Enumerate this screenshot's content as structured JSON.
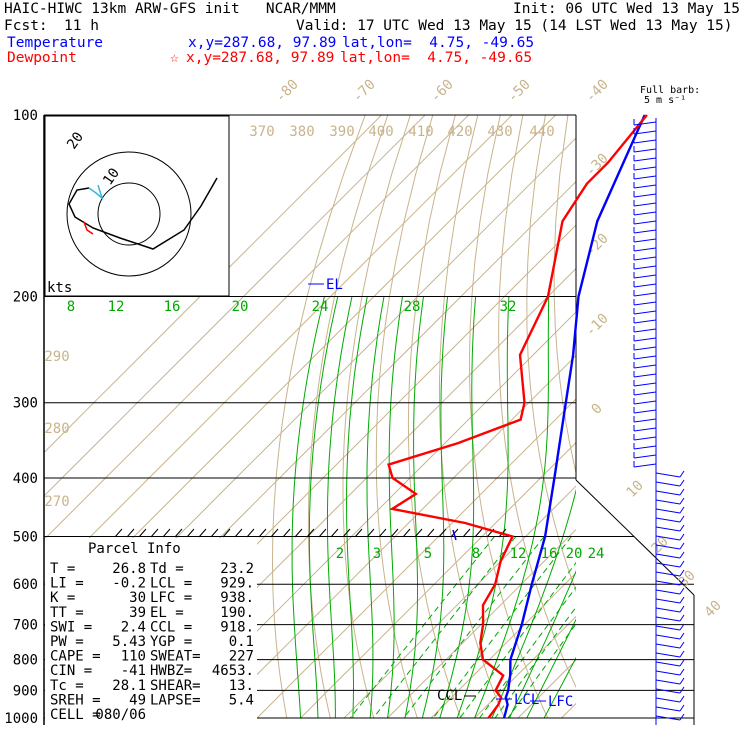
{
  "header": {
    "title": "HAIC-HIWC 13km ARW-GFS init   NCAR/MMM",
    "init": "Init: 06 UTC Wed 13 May 15",
    "fcst_label": "Fcst:",
    "fcst_value": "11 h",
    "valid": "Valid: 17 UTC Wed 13 May 15 (14 LST Wed 13 May 15)",
    "temperature_label": "Temperature",
    "temperature_xy": "x,y=287.68, 97.89",
    "temperature_latlon": "lat,lon=  4.75, -49.65",
    "dewpoint_label": "Dewpoint",
    "dewpoint_marker": "☆",
    "dewpoint_xy": "x,y=287.68, 97.89",
    "dewpoint_latlon": "lat,lon=  4.75, -49.65"
  },
  "colors": {
    "temperature": "#0000ff",
    "dewpoint": "#ff0000",
    "mixing_ratio": "#00aa00",
    "dry_adiabat": "#c8b48c",
    "isotherm": "#c8b48c",
    "hodo_cyan": "#33bbdd"
  },
  "barb_legend": {
    "line1": "Full barb:",
    "line2": "5 m s⁻¹"
  },
  "chart_data": {
    "type": "line",
    "subtype": "skew-T log-P",
    "pressure_ticks": [
      "100",
      "200",
      "300",
      "400",
      "500",
      "600",
      "700",
      "800",
      "900",
      "1000"
    ],
    "isotherm_labels": [
      "-80",
      "-70",
      "-60",
      "-50",
      "-40",
      "-30",
      "-20",
      "-10",
      "0",
      "10",
      "20",
      "30",
      "40"
    ],
    "theta_labels": [
      "370",
      "380",
      "390",
      "400",
      "410",
      "420",
      "430",
      "440"
    ],
    "theta_left_labels": [
      "290",
      "280",
      "270"
    ],
    "mixing_ratio_labels_upper": [
      "8",
      "12",
      "16",
      "20",
      "24",
      "28",
      "32"
    ],
    "mixing_ratio_labels_lower": [
      "2",
      "3",
      "5",
      "8",
      "12",
      "16",
      "20",
      "24"
    ],
    "series": [
      {
        "name": "Temperature",
        "points": [
          [
            1000,
            26.8
          ],
          [
            950,
            24.5
          ],
          [
            925,
            22.5
          ],
          [
            900,
            21.4
          ],
          [
            850,
            18.4
          ],
          [
            800,
            14.8
          ],
          [
            700,
            9.4
          ],
          [
            600,
            2.4
          ],
          [
            500,
            -5.5
          ],
          [
            400,
            -16.8
          ],
          [
            300,
            -31.5
          ],
          [
            250,
            -40.8
          ],
          [
            200,
            -53
          ],
          [
            150,
            -66
          ],
          [
            100,
            -79.5
          ]
        ]
      },
      {
        "name": "Dewpoint",
        "points": [
          [
            1000,
            23.2
          ],
          [
            950,
            22.4
          ],
          [
            925,
            21.4
          ],
          [
            900,
            18.5
          ],
          [
            850,
            16.8
          ],
          [
            800,
            8.5
          ],
          [
            750,
            4
          ],
          [
            700,
            0.5
          ],
          [
            650,
            -4
          ],
          [
            600,
            -6
          ],
          [
            550,
            -10
          ],
          [
            500,
            -13
          ],
          [
            475,
            -27
          ],
          [
            450,
            -47
          ],
          [
            425,
            -45
          ],
          [
            400,
            -54
          ],
          [
            380,
            -58
          ],
          [
            350,
            -47
          ],
          [
            320,
            -38
          ],
          [
            300,
            -41
          ],
          [
            250,
            -53
          ],
          [
            200,
            -60
          ],
          [
            150,
            -74
          ],
          [
            130,
            -77
          ],
          [
            120,
            -77
          ],
          [
            100,
            -79
          ]
        ]
      }
    ],
    "annotations": [
      "EL",
      "CCL",
      "LCL",
      "LFC"
    ],
    "hodograph": {
      "ring_labels": [
        "20",
        "10"
      ],
      "units": "kts"
    }
  },
  "parcel_info": {
    "title": "Parcel Info",
    "rows": [
      [
        "T    =",
        "26.8",
        "Td    =",
        "23.2"
      ],
      [
        "LI   =",
        "-0.2",
        "LCL   =",
        "929."
      ],
      [
        "K    =",
        "30",
        "LFC   =",
        "938."
      ],
      [
        "TT   =",
        "39",
        "EL    =",
        "190."
      ],
      [
        "SWI  =",
        "2.4",
        "CCL   =",
        "918."
      ],
      [
        "PW   =",
        "5.43",
        "YGP   =",
        "0.1"
      ],
      [
        "CAPE =",
        "110",
        "SWEAT=",
        "227"
      ],
      [
        "CIN  =",
        "-41",
        "HWBZ=",
        "4653."
      ],
      [
        "Tc   =",
        "28.1",
        "SHEAR=",
        "13."
      ],
      [
        "SREH =",
        "49",
        "LAPSE=",
        "5.4"
      ],
      [
        "CELL =",
        "080/06",
        "",
        ""
      ]
    ]
  }
}
